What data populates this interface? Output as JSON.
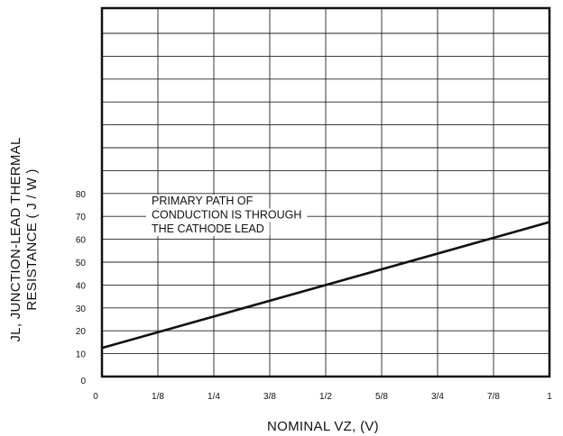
{
  "chart_data": {
    "type": "line",
    "xlabel": "NOMINAL VZ, (V)",
    "ylabel_lines": [
      "JL, JUNCTION-LEAD THERMAL",
      "RESISTANCE ( J / W )"
    ],
    "x_ticks": [
      "0",
      "1/8",
      "1/4",
      "3/8",
      "1/2",
      "5/8",
      "3/4",
      "7/8",
      "1"
    ],
    "x_tick_values": [
      0,
      0.125,
      0.25,
      0.375,
      0.5,
      0.625,
      0.75,
      0.875,
      1
    ],
    "y_ticks": [
      "0",
      "10",
      "20",
      "30",
      "40",
      "50",
      "60",
      "70",
      "80"
    ],
    "y_tick_values": [
      0,
      10,
      20,
      30,
      40,
      50,
      60,
      70,
      80
    ],
    "xlim": [
      0,
      1
    ],
    "grid": true,
    "series": [
      {
        "x": [
          0,
          1
        ],
        "y": [
          12.5,
          67.5
        ]
      }
    ],
    "annotation": [
      "PRIMARY PATH OF",
      "CONDUCTION IS THROUGH",
      "THE CATHODE LEAD"
    ]
  }
}
